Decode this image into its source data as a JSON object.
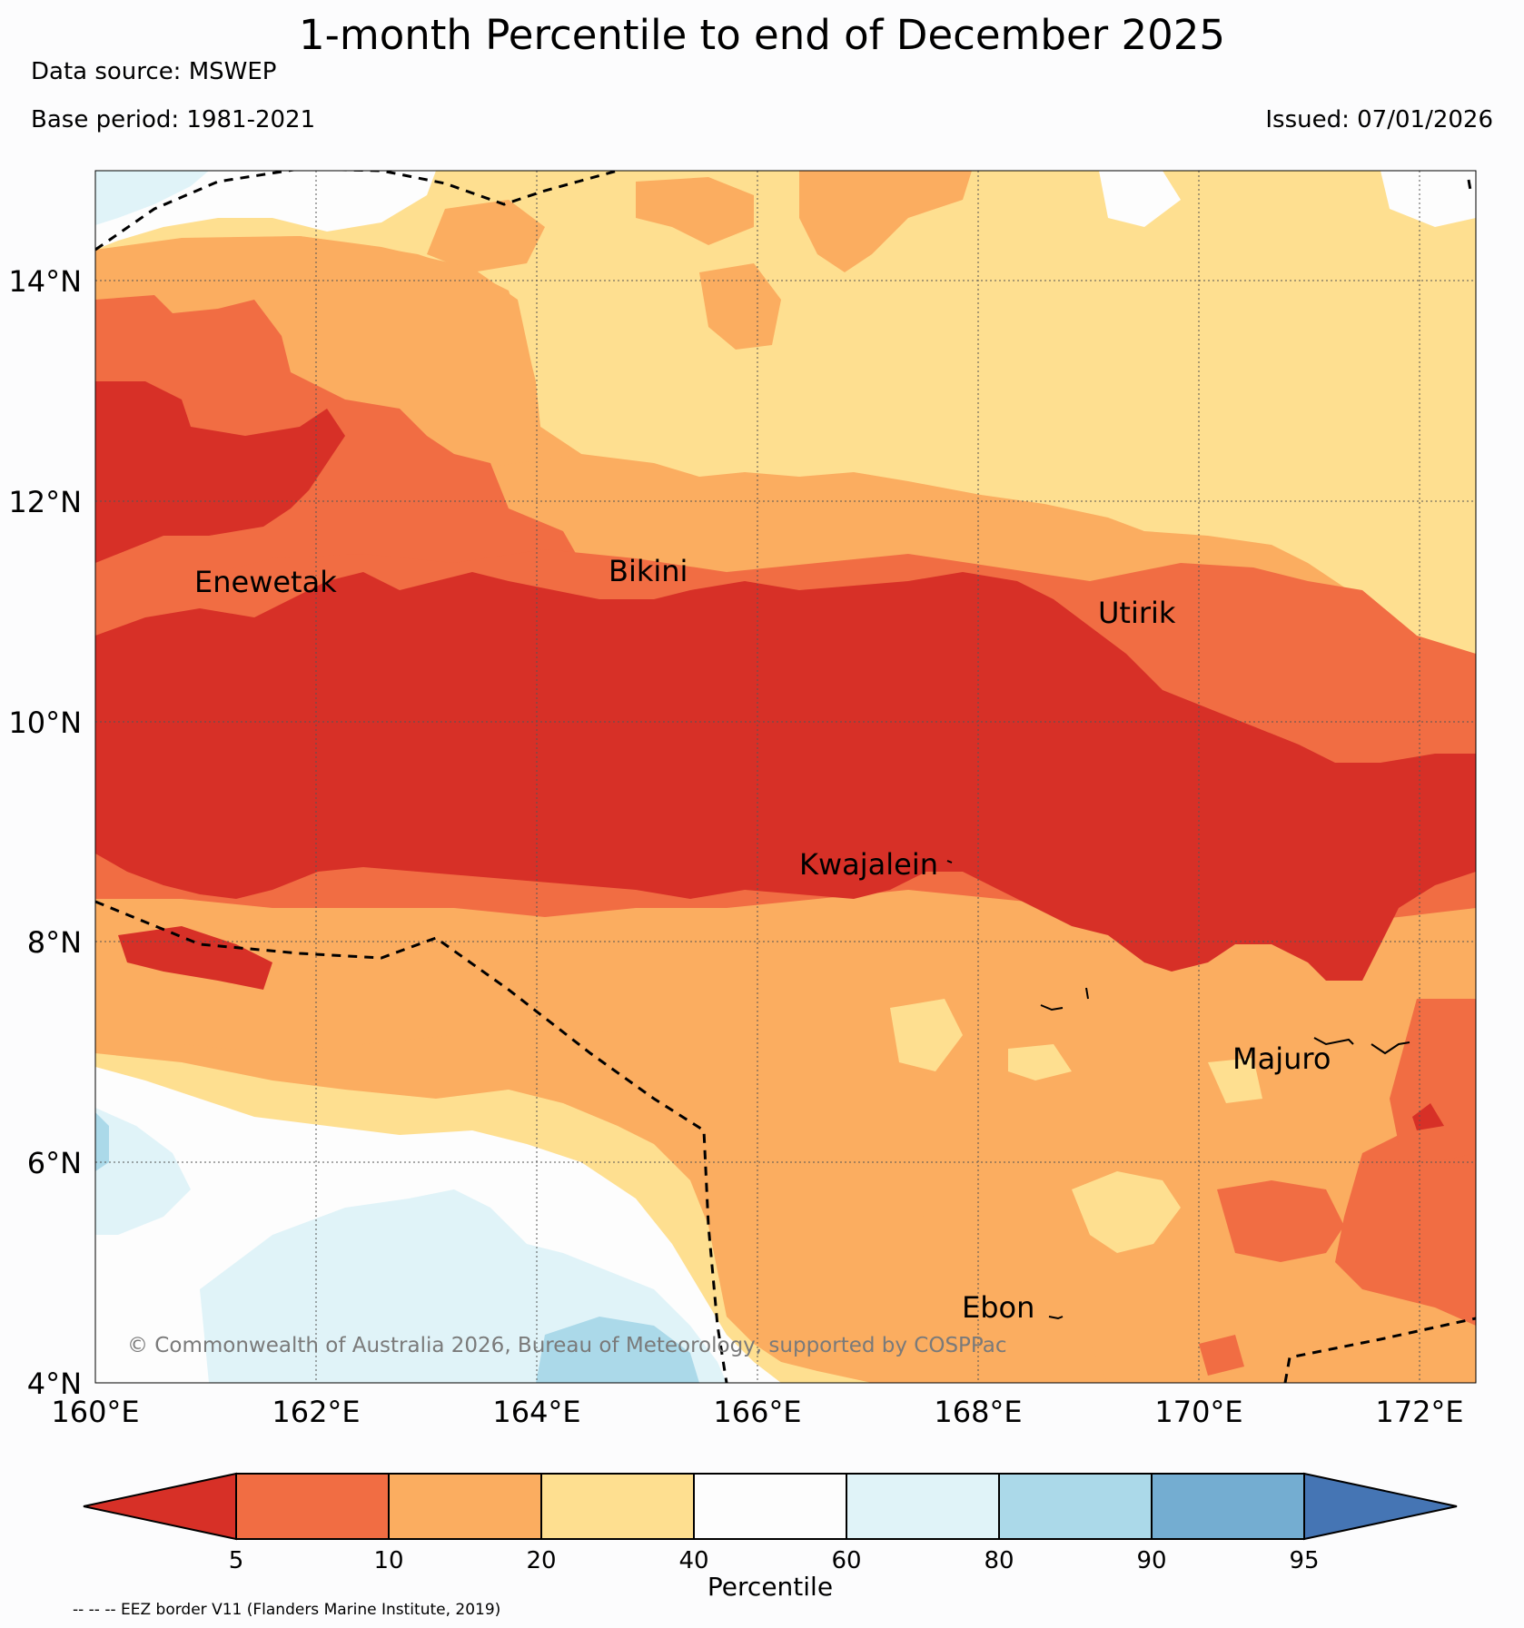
{
  "header": {
    "title": "1-month Percentile to end of December 2025",
    "data_source": "Data source: MSWEP",
    "base_period": "Base period: 1981-2021",
    "issued": "Issued: 07/01/2026"
  },
  "map": {
    "lon_range": [
      160,
      172.5
    ],
    "lat_range": [
      4,
      15
    ],
    "y_ticks": [
      "4°N",
      "6°N",
      "8°N",
      "10°N",
      "12°N",
      "14°N"
    ],
    "x_ticks": [
      "160°E",
      "162°E",
      "164°E",
      "166°E",
      "168°E",
      "170°E",
      "172°E"
    ],
    "places": [
      {
        "name": "Enewetak",
        "lon": 162.3,
        "lat": 11.35
      },
      {
        "name": "Bikini",
        "lon": 165.5,
        "lat": 11.55
      },
      {
        "name": "Utirik",
        "lon": 169.7,
        "lat": 11.0
      },
      {
        "name": "Kwajalein",
        "lon": 167.4,
        "lat": 8.75
      },
      {
        "name": "Majuro",
        "lon": 171.2,
        "lat": 7.1
      },
      {
        "name": "Ebon",
        "lon": 168.5,
        "lat": 4.65
      }
    ],
    "copyright": "© Commonwealth of Australia 2026, Bureau of Meteorology, supported by COSPPac",
    "grid": true
  },
  "colorbar": {
    "label": "Percentile",
    "ticks": [
      "5",
      "10",
      "20",
      "40",
      "60",
      "80",
      "90",
      "95"
    ],
    "colors": [
      "#d73027",
      "#f16d43",
      "#fbad60",
      "#fedf90",
      "#fdfdfd",
      "#e0f3f8",
      "#abd9e9",
      "#74add1",
      "#4575b4"
    ]
  },
  "footnote": "-- -- -- EEZ border V11 (Flanders Marine Institute, 2019)"
}
